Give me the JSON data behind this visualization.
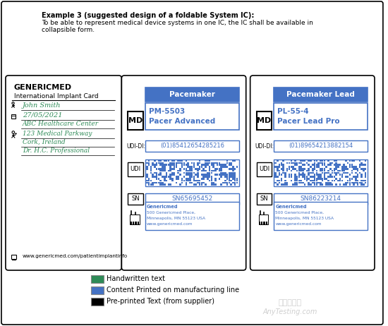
{
  "title_bold": "Example 3 (suggested design of a foldable System IC):",
  "title_text": "To be able to represent medical device systems in one IC, the IC shall be available in\ncollapsible form.",
  "bg_color": "#ffffff",
  "border_color": "#000000",
  "blue_color": "#4472C4",
  "green_color": "#2E8B57",
  "card1": {
    "brand": "GENERICMED",
    "subtitle": "International Implant Card",
    "name": "John Smith",
    "date": "27/05/2021",
    "hospital": "ABC Healthcare Center",
    "address": "123 Medical Parkway",
    "city": "Cork, Ireland",
    "doctor": "Dr. H.C. Professional",
    "website": "www.genericmed.com/patientimplantinfo"
  },
  "card2": {
    "md_label": "MD",
    "device_name": "Pacemaker",
    "model_code": "PM-5503",
    "model_name": "Pacer Advanced",
    "udi_di_label": "UDI-DI:",
    "udi_di_value": "(01)85412654285216",
    "udi_label": "UDI",
    "sn_label": "SN",
    "sn_value": "SN65695452",
    "mfr_name": "Genericmed",
    "mfr_addr1": "500 Genericmed Place,",
    "mfr_addr2": "Minneapolis, MN 55123 USA",
    "mfr_web": "www.genericmed.com",
    "qr_seed": 42
  },
  "card3": {
    "md_label": "MD",
    "device_name": "Pacemaker Lead",
    "model_code": "PL-55-4",
    "model_name": "Pacer Lead Pro",
    "udi_di_label": "UDI-DI:",
    "udi_di_value": "(01)89654213882154",
    "udi_label": "UDI",
    "sn_label": "SN",
    "sn_value": "SN86223214",
    "mfr_name": "Genericmed",
    "mfr_addr1": "500 Genericmed Place,",
    "mfr_addr2": "Minneapolis, MN 55123 USA",
    "mfr_web": "www.genericmed.com",
    "qr_seed": 7
  },
  "legend": [
    {
      "color": "#2E8B57",
      "label": "Handwritten text"
    },
    {
      "color": "#4472C4",
      "label": "Content Printed on manufacturing line"
    },
    {
      "color": "#000000",
      "label": "Pre-printed Text (from supplier)"
    }
  ],
  "watermark_line1": "嘉峪检测网",
  "watermark_line2": "AnyTesting.com"
}
